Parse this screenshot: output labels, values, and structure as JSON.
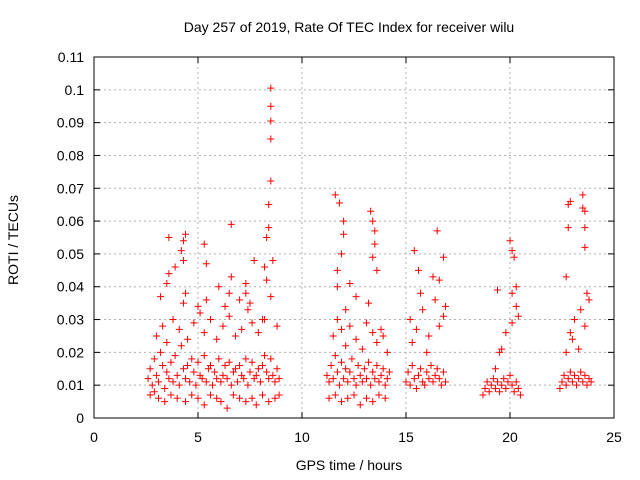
{
  "chart_data": {
    "type": "scatter",
    "title": "Day 257 of 2019, Rate Of TEC Index for receiver wilu",
    "xlabel": "GPS time / hours",
    "ylabel": "ROTI / TECUs",
    "xlim": [
      0,
      25
    ],
    "ylim": [
      0,
      0.11
    ],
    "xticks": [
      0,
      5,
      10,
      15,
      20,
      25
    ],
    "xtick_labels": [
      "0",
      "5",
      "10",
      "15",
      "20",
      "25"
    ],
    "yticks": [
      0,
      0.01,
      0.02,
      0.03,
      0.04,
      0.05,
      0.06,
      0.07,
      0.08,
      0.09,
      0.1,
      0.11
    ],
    "ytick_labels": [
      "0",
      "0.01",
      "0.02",
      "0.03",
      "0.04",
      "0.05",
      "0.06",
      "0.07",
      "0.08",
      "0.09",
      "0.1",
      "0.11"
    ],
    "grid": true,
    "marker": "+",
    "colors": {
      "points": "#ff0000",
      "grid": "#b0b0b0",
      "axes": "#000000"
    },
    "series": [
      {
        "x": [
          2.6,
          2.7,
          2.8,
          2.9,
          3.0,
          3.1,
          3.2,
          3.3,
          3.4,
          3.5,
          3.6,
          3.7,
          3.8,
          3.9,
          4.0,
          4.1,
          4.2,
          4.3,
          4.4,
          4.5,
          4.6,
          4.7,
          4.8,
          4.9,
          5.0,
          5.1,
          5.2,
          5.3,
          5.4,
          5.5,
          5.6,
          5.7,
          5.8,
          5.9,
          6.0,
          6.1,
          6.2,
          6.3,
          6.4,
          6.5,
          6.6,
          6.7,
          6.8,
          6.9,
          7.0,
          7.1,
          7.2,
          7.3,
          7.4,
          7.5,
          7.6,
          7.7,
          7.8,
          7.9,
          8.0,
          8.1,
          8.2,
          8.3,
          8.4,
          8.5,
          8.6,
          8.7,
          8.8,
          8.9,
          3.0,
          3.3,
          3.5,
          3.8,
          4.1,
          4.3,
          4.5,
          4.8,
          5.1,
          5.3,
          5.6,
          5.9,
          6.2,
          6.5,
          6.8,
          7.1,
          7.4,
          7.6,
          7.9,
          8.2,
          8.5,
          8.8,
          3.2,
          3.5,
          3.6,
          3.9,
          4.2,
          4.3,
          4.4,
          5.0,
          5.3,
          5.4,
          6.0,
          6.3,
          6.5,
          6.6,
          7.0,
          7.3,
          7.5,
          7.7,
          8.1,
          8.3,
          8.6,
          8.5,
          8.5,
          8.5,
          8.5,
          8.5,
          8.4,
          8.4,
          8.3,
          8.2,
          7.3,
          6.6,
          5.4,
          4.4,
          4.3,
          3.6,
          2.7,
          2.9,
          3.1,
          3.4,
          3.7,
          4.0,
          4.4,
          4.7,
          5.0,
          5.3,
          5.6,
          5.9,
          6.1,
          6.4,
          6.7,
          7.0,
          7.3,
          7.6,
          7.8,
          8.1,
          8.4,
          8.7,
          8.9,
          11.2,
          11.3,
          11.4,
          11.5,
          11.6,
          11.7,
          11.8,
          11.9,
          12.0,
          12.1,
          12.2,
          12.3,
          12.4,
          12.5,
          12.6,
          12.7,
          12.8,
          12.9,
          13.0,
          13.1,
          13.2,
          13.3,
          13.4,
          13.5,
          13.6,
          13.7,
          13.8,
          13.9,
          14.0,
          14.1,
          14.2,
          11.5,
          11.7,
          11.9,
          12.1,
          12.3,
          12.6,
          12.9,
          13.1,
          13.4,
          13.6,
          13.9,
          14.1,
          11.6,
          11.8,
          12.0,
          12.0,
          11.9,
          11.7,
          12.3,
          12.6,
          13.3,
          13.4,
          13.5,
          13.5,
          13.4,
          13.6,
          11.7,
          12.1,
          13.8,
          13.2,
          11.3,
          11.6,
          11.9,
          12.2,
          12.5,
          12.8,
          13.1,
          13.4,
          13.7,
          14.0,
          15.0,
          15.1,
          15.2,
          15.3,
          15.4,
          15.5,
          15.6,
          15.7,
          15.8,
          15.9,
          16.0,
          16.1,
          16.2,
          16.3,
          16.4,
          16.5,
          16.6,
          16.7,
          16.8,
          16.9,
          15.2,
          15.5,
          15.8,
          16.1,
          16.4,
          16.6,
          16.8,
          15.4,
          15.6,
          16.5,
          16.8,
          16.6,
          15.7,
          16.3,
          16.9,
          15.3,
          16.0,
          18.7,
          18.8,
          18.9,
          19.0,
          19.1,
          19.2,
          19.3,
          19.4,
          19.5,
          19.6,
          19.7,
          19.8,
          19.9,
          20.0,
          20.1,
          20.2,
          20.3,
          20.4,
          20.5,
          19.3,
          19.5,
          19.8,
          20.1,
          20.3,
          20.0,
          20.1,
          20.2,
          20.3,
          20.1,
          19.4,
          19.6,
          20.4,
          22.4,
          22.5,
          22.6,
          22.7,
          22.8,
          22.9,
          23.0,
          23.1,
          23.2,
          23.3,
          23.4,
          23.5,
          23.6,
          23.7,
          23.8,
          23.9,
          22.7,
          22.9,
          23.1,
          23.4,
          23.6,
          23.8,
          22.8,
          22.9,
          22.8,
          23.5,
          23.6,
          23.5,
          23.6,
          23.6,
          22.7,
          23.0,
          23.7,
          23.3
        ],
        "y": [
          0.012,
          0.015,
          0.01,
          0.018,
          0.013,
          0.011,
          0.02,
          0.016,
          0.009,
          0.014,
          0.012,
          0.017,
          0.011,
          0.019,
          0.013,
          0.01,
          0.022,
          0.015,
          0.012,
          0.016,
          0.011,
          0.018,
          0.014,
          0.01,
          0.017,
          0.013,
          0.012,
          0.019,
          0.011,
          0.015,
          0.016,
          0.01,
          0.014,
          0.012,
          0.018,
          0.011,
          0.013,
          0.016,
          0.012,
          0.017,
          0.01,
          0.014,
          0.015,
          0.011,
          0.016,
          0.013,
          0.012,
          0.018,
          0.01,
          0.014,
          0.017,
          0.012,
          0.013,
          0.015,
          0.011,
          0.016,
          0.019,
          0.014,
          0.012,
          0.018,
          0.013,
          0.011,
          0.015,
          0.012,
          0.025,
          0.028,
          0.023,
          0.03,
          0.027,
          0.035,
          0.024,
          0.029,
          0.032,
          0.026,
          0.03,
          0.024,
          0.028,
          0.031,
          0.025,
          0.027,
          0.033,
          0.029,
          0.026,
          0.03,
          0.037,
          0.028,
          0.037,
          0.041,
          0.044,
          0.046,
          0.051,
          0.048,
          0.038,
          0.034,
          0.053,
          0.036,
          0.04,
          0.034,
          0.038,
          0.043,
          0.036,
          0.041,
          0.035,
          0.048,
          0.03,
          0.042,
          0.048,
          0.1005,
          0.095,
          0.0905,
          0.085,
          0.0722,
          0.065,
          0.058,
          0.055,
          0.046,
          0.038,
          0.059,
          0.047,
          0.056,
          0.054,
          0.055,
          0.007,
          0.008,
          0.006,
          0.005,
          0.007,
          0.006,
          0.005,
          0.007,
          0.006,
          0.004,
          0.007,
          0.006,
          0.005,
          0.003,
          0.007,
          0.006,
          0.005,
          0.006,
          0.004,
          0.007,
          0.005,
          0.006,
          0.007,
          0.013,
          0.011,
          0.016,
          0.012,
          0.019,
          0.014,
          0.01,
          0.017,
          0.012,
          0.015,
          0.011,
          0.014,
          0.018,
          0.012,
          0.01,
          0.016,
          0.013,
          0.011,
          0.015,
          0.012,
          0.017,
          0.01,
          0.014,
          0.012,
          0.016,
          0.011,
          0.013,
          0.015,
          0.01,
          0.012,
          0.014,
          0.025,
          0.03,
          0.027,
          0.022,
          0.028,
          0.024,
          0.021,
          0.029,
          0.026,
          0.023,
          0.025,
          0.02,
          0.068,
          0.0655,
          0.06,
          0.056,
          0.05,
          0.045,
          0.041,
          0.037,
          0.063,
          0.06,
          0.057,
          0.053,
          0.049,
          0.045,
          0.04,
          0.033,
          0.027,
          0.035,
          0.006,
          0.007,
          0.005,
          0.006,
          0.007,
          0.004,
          0.006,
          0.005,
          0.007,
          0.006,
          0.011,
          0.014,
          0.01,
          0.016,
          0.012,
          0.009,
          0.013,
          0.015,
          0.011,
          0.01,
          0.014,
          0.012,
          0.016,
          0.011,
          0.013,
          0.015,
          0.012,
          0.01,
          0.014,
          0.011,
          0.03,
          0.027,
          0.033,
          0.025,
          0.036,
          0.028,
          0.031,
          0.051,
          0.045,
          0.057,
          0.049,
          0.042,
          0.038,
          0.043,
          0.034,
          0.023,
          0.02,
          0.007,
          0.009,
          0.011,
          0.008,
          0.01,
          0.012,
          0.009,
          0.011,
          0.008,
          0.01,
          0.012,
          0.009,
          0.011,
          0.013,
          0.01,
          0.008,
          0.011,
          0.009,
          0.007,
          0.015,
          0.02,
          0.026,
          0.029,
          0.034,
          0.054,
          0.051,
          0.049,
          0.04,
          0.038,
          0.039,
          0.021,
          0.031,
          0.009,
          0.011,
          0.013,
          0.01,
          0.012,
          0.014,
          0.011,
          0.013,
          0.01,
          0.012,
          0.014,
          0.011,
          0.013,
          0.01,
          0.012,
          0.011,
          0.02,
          0.026,
          0.03,
          0.033,
          0.028,
          0.036,
          0.065,
          0.066,
          0.058,
          0.068,
          0.063,
          0.064,
          0.052,
          0.058,
          0.043,
          0.024,
          0.038,
          0.021
        ]
      }
    ]
  }
}
